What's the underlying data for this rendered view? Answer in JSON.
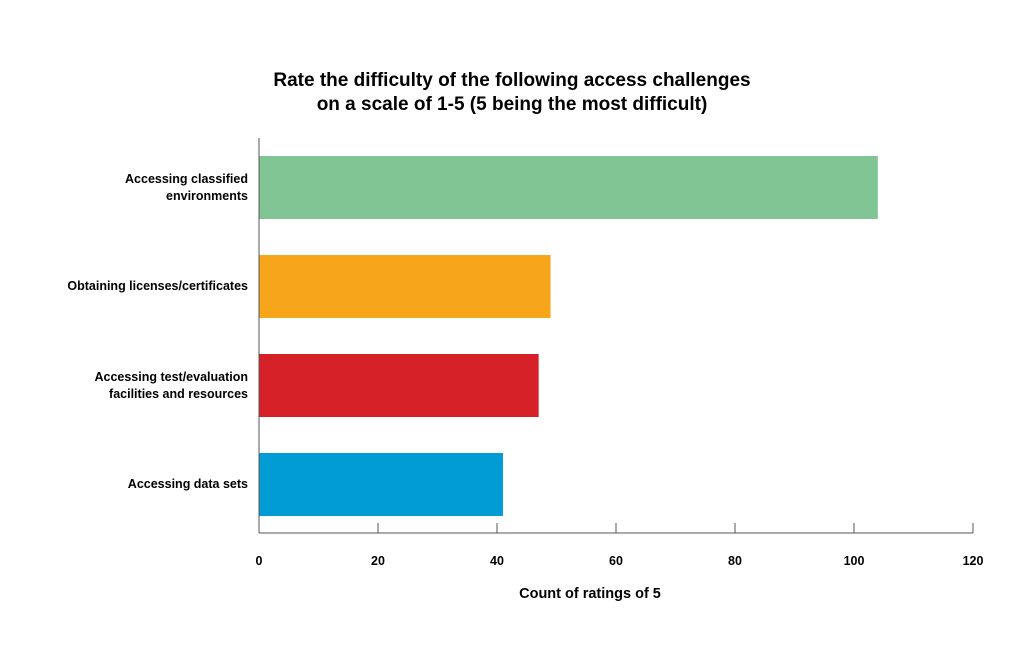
{
  "chart_data": {
    "type": "bar",
    "orientation": "horizontal",
    "title_lines": [
      "Rate the difficulty of the following access challenges",
      "on a scale of 1-5 (5 being the most difficult)"
    ],
    "categories": [
      [
        "Accessing classified",
        "environments"
      ],
      [
        "Obtaining licenses/certificates"
      ],
      [
        "Accessing test/evaluation",
        "facilities and resources"
      ],
      [
        "Accessing data sets"
      ]
    ],
    "values": [
      104,
      49,
      47,
      41
    ],
    "colors": [
      "#80c593",
      "#f7a51b",
      "#d62027",
      "#019bd6"
    ],
    "xlabel": "Count of ratings of 5",
    "xlim": [
      0,
      120
    ],
    "xticks": [
      "0",
      "20",
      "40",
      "60",
      "80",
      "100",
      "120"
    ],
    "grid": false
  }
}
